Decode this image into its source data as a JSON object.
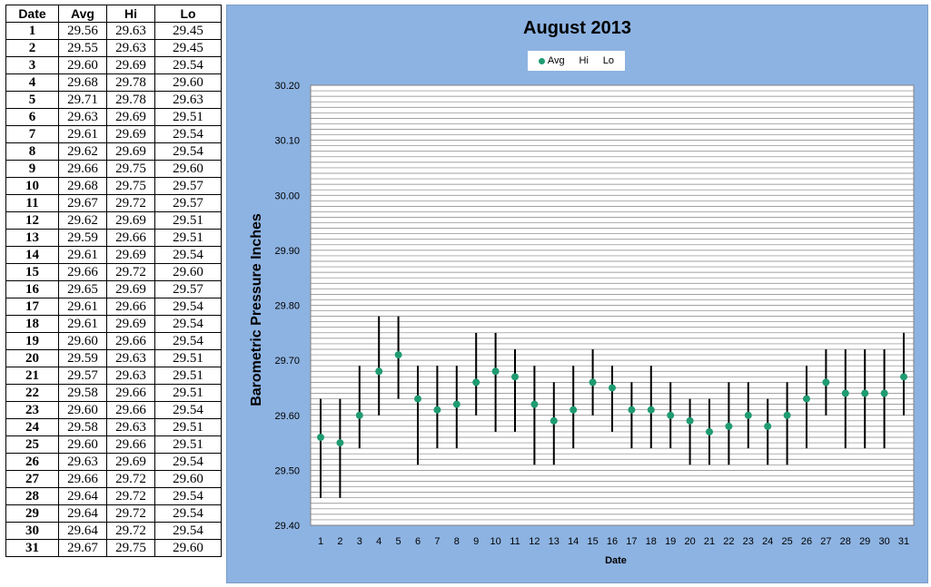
{
  "table": {
    "headers": [
      "Date",
      "Avg",
      "Hi",
      "Lo"
    ],
    "rows": [
      [
        "1",
        "29.56",
        "29.63",
        "29.45"
      ],
      [
        "2",
        "29.55",
        "29.63",
        "29.45"
      ],
      [
        "3",
        "29.60",
        "29.69",
        "29.54"
      ],
      [
        "4",
        "29.68",
        "29.78",
        "29.60"
      ],
      [
        "5",
        "29.71",
        "29.78",
        "29.63"
      ],
      [
        "6",
        "29.63",
        "29.69",
        "29.51"
      ],
      [
        "7",
        "29.61",
        "29.69",
        "29.54"
      ],
      [
        "8",
        "29.62",
        "29.69",
        "29.54"
      ],
      [
        "9",
        "29.66",
        "29.75",
        "29.60"
      ],
      [
        "10",
        "29.68",
        "29.75",
        "29.57"
      ],
      [
        "11",
        "29.67",
        "29.72",
        "29.57"
      ],
      [
        "12",
        "29.62",
        "29.69",
        "29.51"
      ],
      [
        "13",
        "29.59",
        "29.66",
        "29.51"
      ],
      [
        "14",
        "29.61",
        "29.69",
        "29.54"
      ],
      [
        "15",
        "29.66",
        "29.72",
        "29.60"
      ],
      [
        "16",
        "29.65",
        "29.69",
        "29.57"
      ],
      [
        "17",
        "29.61",
        "29.66",
        "29.54"
      ],
      [
        "18",
        "29.61",
        "29.69",
        "29.54"
      ],
      [
        "19",
        "29.60",
        "29.66",
        "29.54"
      ],
      [
        "20",
        "29.59",
        "29.63",
        "29.51"
      ],
      [
        "21",
        "29.57",
        "29.63",
        "29.51"
      ],
      [
        "22",
        "29.58",
        "29.66",
        "29.51"
      ],
      [
        "23",
        "29.60",
        "29.66",
        "29.54"
      ],
      [
        "24",
        "29.58",
        "29.63",
        "29.51"
      ],
      [
        "25",
        "29.60",
        "29.66",
        "29.51"
      ],
      [
        "26",
        "29.63",
        "29.69",
        "29.54"
      ],
      [
        "27",
        "29.66",
        "29.72",
        "29.60"
      ],
      [
        "28",
        "29.64",
        "29.72",
        "29.54"
      ],
      [
        "29",
        "29.64",
        "29.72",
        "29.54"
      ],
      [
        "30",
        "29.64",
        "29.72",
        "29.54"
      ],
      [
        "31",
        "29.67",
        "29.75",
        "29.60"
      ]
    ]
  },
  "chart_data": {
    "type": "scatter",
    "title": "August 2013",
    "xlabel": "Date",
    "ylabel": "Barometric Pressure Inches",
    "ylim": [
      29.4,
      30.2
    ],
    "y_ticks": [
      "29.40",
      "29.50",
      "29.60",
      "29.70",
      "29.80",
      "29.90",
      "30.00",
      "30.10",
      "30.20"
    ],
    "x": [
      1,
      2,
      3,
      4,
      5,
      6,
      7,
      8,
      9,
      10,
      11,
      12,
      13,
      14,
      15,
      16,
      17,
      18,
      19,
      20,
      21,
      22,
      23,
      24,
      25,
      26,
      27,
      28,
      29,
      30,
      31
    ],
    "legend": [
      "Avg",
      "Hi",
      "Lo"
    ],
    "legend_position": "top",
    "grid": true,
    "colors": {
      "avg": "#1f9b72",
      "range": "#000000",
      "panel": "#8db3e2",
      "plot": "#ffffff",
      "grid": "#808080"
    },
    "series": [
      {
        "name": "Avg",
        "values": [
          29.56,
          29.55,
          29.6,
          29.68,
          29.71,
          29.63,
          29.61,
          29.62,
          29.66,
          29.68,
          29.67,
          29.62,
          29.59,
          29.61,
          29.66,
          29.65,
          29.61,
          29.61,
          29.6,
          29.59,
          29.57,
          29.58,
          29.6,
          29.58,
          29.6,
          29.63,
          29.66,
          29.64,
          29.64,
          29.64,
          29.67
        ]
      },
      {
        "name": "Hi",
        "values": [
          29.63,
          29.63,
          29.69,
          29.78,
          29.78,
          29.69,
          29.69,
          29.69,
          29.75,
          29.75,
          29.72,
          29.69,
          29.66,
          29.69,
          29.72,
          29.69,
          29.66,
          29.69,
          29.66,
          29.63,
          29.63,
          29.66,
          29.66,
          29.63,
          29.66,
          29.69,
          29.72,
          29.72,
          29.72,
          29.72,
          29.75
        ]
      },
      {
        "name": "Lo",
        "values": [
          29.45,
          29.45,
          29.54,
          29.6,
          29.63,
          29.51,
          29.54,
          29.54,
          29.6,
          29.57,
          29.57,
          29.51,
          29.51,
          29.54,
          29.6,
          29.57,
          29.54,
          29.54,
          29.54,
          29.51,
          29.51,
          29.51,
          29.54,
          29.51,
          29.51,
          29.54,
          29.6,
          29.54,
          29.54,
          29.54,
          29.6
        ]
      }
    ]
  }
}
